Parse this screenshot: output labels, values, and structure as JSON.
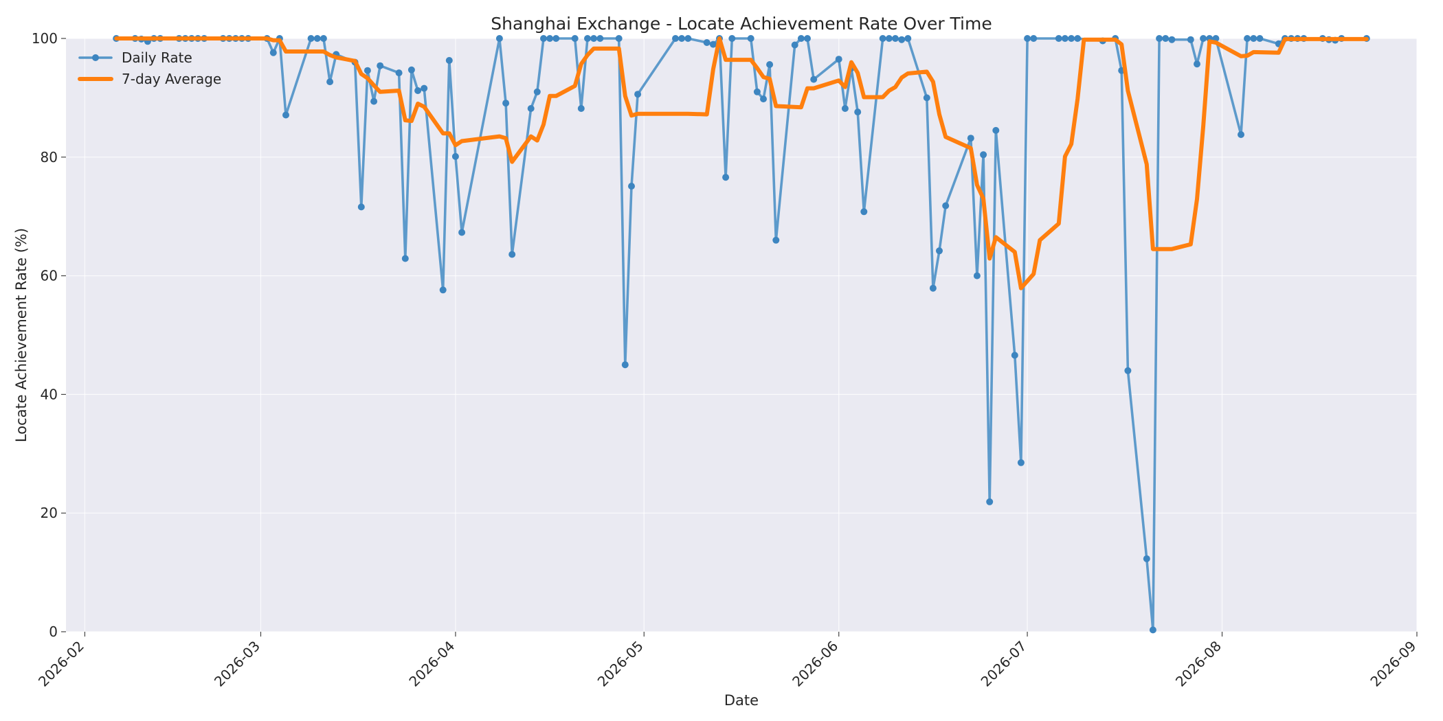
{
  "chart_data": {
    "type": "line",
    "title": "Shanghai Exchange - Locate Achievement Rate Over Time",
    "xlabel": "Date",
    "ylabel": "Locate Achievement Rate (%)",
    "xlim": [
      "2026-01-29",
      "2026-09-01"
    ],
    "ylim": [
      0,
      100
    ],
    "x_ticks": [
      "2026-02",
      "2026-03",
      "2026-04",
      "2026-05",
      "2026-06",
      "2026-07",
      "2026-08",
      "2026-09"
    ],
    "y_ticks": [
      0,
      20,
      40,
      60,
      80,
      100
    ],
    "grid": true,
    "legend": "top-left",
    "series": [
      {
        "name": "Daily Rate",
        "color": "#5596c8",
        "marker": "circle",
        "points": [
          [
            "2026-02-06",
            100.0
          ],
          [
            "2026-02-09",
            100.0
          ],
          [
            "2026-02-10",
            99.9
          ],
          [
            "2026-02-11",
            99.5
          ],
          [
            "2026-02-12",
            100.0
          ],
          [
            "2026-02-13",
            100.0
          ],
          [
            "2026-02-16",
            100.0
          ],
          [
            "2026-02-17",
            100.0
          ],
          [
            "2026-02-18",
            100.0
          ],
          [
            "2026-02-19",
            100.0
          ],
          [
            "2026-02-20",
            100.0
          ],
          [
            "2026-02-23",
            100.0
          ],
          [
            "2026-02-24",
            100.0
          ],
          [
            "2026-02-25",
            100.0
          ],
          [
            "2026-02-26",
            100.0
          ],
          [
            "2026-02-27",
            100.0
          ],
          [
            "2026-03-02",
            100.0
          ],
          [
            "2026-03-03",
            97.6
          ],
          [
            "2026-03-04",
            100.0
          ],
          [
            "2026-03-05",
            87.1
          ],
          [
            "2026-03-09",
            100.0
          ],
          [
            "2026-03-10",
            100.0
          ],
          [
            "2026-03-11",
            100.0
          ],
          [
            "2026-03-12",
            92.7
          ],
          [
            "2026-03-13",
            97.3
          ],
          [
            "2026-03-16",
            96.0
          ],
          [
            "2026-03-17",
            71.6
          ],
          [
            "2026-03-18",
            94.6
          ],
          [
            "2026-03-19",
            89.4
          ],
          [
            "2026-03-20",
            95.4
          ],
          [
            "2026-03-23",
            94.2
          ],
          [
            "2026-03-24",
            62.9
          ],
          [
            "2026-03-25",
            94.7
          ],
          [
            "2026-03-26",
            91.2
          ],
          [
            "2026-03-27",
            91.6
          ],
          [
            "2026-03-30",
            57.6
          ],
          [
            "2026-03-31",
            96.3
          ],
          [
            "2026-04-01",
            80.1
          ],
          [
            "2026-04-02",
            67.3
          ],
          [
            "2026-04-08",
            100.0
          ],
          [
            "2026-04-09",
            89.1
          ],
          [
            "2026-04-10",
            63.6
          ],
          [
            "2026-04-13",
            88.2
          ],
          [
            "2026-04-14",
            91.0
          ],
          [
            "2026-04-15",
            100.0
          ],
          [
            "2026-04-16",
            100.0
          ],
          [
            "2026-04-17",
            100.0
          ],
          [
            "2026-04-20",
            100.0
          ],
          [
            "2026-04-21",
            88.2
          ],
          [
            "2026-04-22",
            100.0
          ],
          [
            "2026-04-23",
            100.0
          ],
          [
            "2026-04-24",
            100.0
          ],
          [
            "2026-04-27",
            100.0
          ],
          [
            "2026-04-28",
            45.0
          ],
          [
            "2026-04-29",
            75.1
          ],
          [
            "2026-04-30",
            90.6
          ],
          [
            "2026-05-06",
            100.0
          ],
          [
            "2026-05-07",
            100.0
          ],
          [
            "2026-05-08",
            100.0
          ],
          [
            "2026-05-11",
            99.3
          ],
          [
            "2026-05-12",
            99.0
          ],
          [
            "2026-05-13",
            100.0
          ],
          [
            "2026-05-14",
            76.6
          ],
          [
            "2026-05-15",
            100.0
          ],
          [
            "2026-05-18",
            100.0
          ],
          [
            "2026-05-19",
            91.0
          ],
          [
            "2026-05-20",
            89.8
          ],
          [
            "2026-05-21",
            95.6
          ],
          [
            "2026-05-22",
            66.0
          ],
          [
            "2026-05-25",
            98.9
          ],
          [
            "2026-05-26",
            100.0
          ],
          [
            "2026-05-27",
            100.0
          ],
          [
            "2026-05-28",
            93.1
          ],
          [
            "2026-06-01",
            96.5
          ],
          [
            "2026-06-02",
            88.2
          ],
          [
            "2026-06-03",
            95.0
          ],
          [
            "2026-06-04",
            87.6
          ],
          [
            "2026-06-05",
            70.8
          ],
          [
            "2026-06-08",
            100.0
          ],
          [
            "2026-06-09",
            100.0
          ],
          [
            "2026-06-10",
            100.0
          ],
          [
            "2026-06-11",
            99.8
          ],
          [
            "2026-06-12",
            100.0
          ],
          [
            "2026-06-15",
            90.0
          ],
          [
            "2026-06-16",
            57.9
          ],
          [
            "2026-06-17",
            64.2
          ],
          [
            "2026-06-18",
            71.8
          ],
          [
            "2026-06-22",
            83.2
          ],
          [
            "2026-06-23",
            60.0
          ],
          [
            "2026-06-24",
            80.4
          ],
          [
            "2026-06-25",
            21.9
          ],
          [
            "2026-06-26",
            84.5
          ],
          [
            "2026-06-29",
            46.6
          ],
          [
            "2026-06-30",
            28.5
          ],
          [
            "2026-07-01",
            100.0
          ],
          [
            "2026-07-02",
            100.0
          ],
          [
            "2026-07-06",
            100.0
          ],
          [
            "2026-07-07",
            100.0
          ],
          [
            "2026-07-08",
            100.0
          ],
          [
            "2026-07-09",
            100.0
          ],
          [
            "2026-07-13",
            99.6
          ],
          [
            "2026-07-15",
            100.0
          ],
          [
            "2026-07-16",
            94.6
          ],
          [
            "2026-07-17",
            44.0
          ],
          [
            "2026-07-20",
            12.3
          ],
          [
            "2026-07-21",
            0.3
          ],
          [
            "2026-07-22",
            100.0
          ],
          [
            "2026-07-23",
            100.0
          ],
          [
            "2026-07-24",
            99.8
          ],
          [
            "2026-07-27",
            99.8
          ],
          [
            "2026-07-28",
            95.7
          ],
          [
            "2026-07-29",
            100.0
          ],
          [
            "2026-07-30",
            100.0
          ],
          [
            "2026-07-31",
            100.0
          ],
          [
            "2026-08-04",
            83.8
          ],
          [
            "2026-08-05",
            100.0
          ],
          [
            "2026-08-06",
            100.0
          ],
          [
            "2026-08-07",
            100.0
          ],
          [
            "2026-08-10",
            99.1
          ],
          [
            "2026-08-11",
            100.0
          ],
          [
            "2026-08-12",
            100.0
          ],
          [
            "2026-08-13",
            100.0
          ],
          [
            "2026-08-14",
            100.0
          ],
          [
            "2026-08-17",
            100.0
          ],
          [
            "2026-08-18",
            99.8
          ],
          [
            "2026-08-19",
            99.7
          ],
          [
            "2026-08-20",
            100.0
          ],
          [
            "2026-08-24",
            100.0
          ]
        ]
      },
      {
        "name": "7-day Average",
        "color": "#ff7f0e",
        "marker": "none",
        "points": [
          [
            "2026-02-06",
            100.0
          ],
          [
            "2026-02-27",
            100.0
          ],
          [
            "2026-03-02",
            100.0
          ],
          [
            "2026-03-03",
            99.7
          ],
          [
            "2026-03-04",
            99.7
          ],
          [
            "2026-03-05",
            97.8
          ],
          [
            "2026-03-09",
            97.8
          ],
          [
            "2026-03-11",
            97.8
          ],
          [
            "2026-03-12",
            97.2
          ],
          [
            "2026-03-13",
            96.8
          ],
          [
            "2026-03-16",
            96.2
          ],
          [
            "2026-03-17",
            94.0
          ],
          [
            "2026-03-18",
            93.3
          ],
          [
            "2026-03-19",
            92.1
          ],
          [
            "2026-03-20",
            91.0
          ],
          [
            "2026-03-23",
            91.2
          ],
          [
            "2026-03-24",
            86.2
          ],
          [
            "2026-03-25",
            86.1
          ],
          [
            "2026-03-26",
            89.0
          ],
          [
            "2026-03-27",
            88.5
          ],
          [
            "2026-03-30",
            84.0
          ],
          [
            "2026-03-31",
            84.0
          ],
          [
            "2026-04-01",
            82.0
          ],
          [
            "2026-04-02",
            82.7
          ],
          [
            "2026-04-08",
            83.5
          ],
          [
            "2026-04-09",
            83.2
          ],
          [
            "2026-04-10",
            79.2
          ],
          [
            "2026-04-13",
            83.5
          ],
          [
            "2026-04-14",
            82.8
          ],
          [
            "2026-04-15",
            85.5
          ],
          [
            "2026-04-16",
            90.3
          ],
          [
            "2026-04-17",
            90.3
          ],
          [
            "2026-04-20",
            92.0
          ],
          [
            "2026-04-21",
            95.7
          ],
          [
            "2026-04-22",
            97.2
          ],
          [
            "2026-04-23",
            98.3
          ],
          [
            "2026-04-27",
            98.3
          ],
          [
            "2026-04-28",
            90.3
          ],
          [
            "2026-04-29",
            87.0
          ],
          [
            "2026-04-30",
            87.3
          ],
          [
            "2026-05-08",
            87.3
          ],
          [
            "2026-05-11",
            87.2
          ],
          [
            "2026-05-12",
            94.8
          ],
          [
            "2026-05-13",
            100.0
          ],
          [
            "2026-05-14",
            96.4
          ],
          [
            "2026-05-18",
            96.4
          ],
          [
            "2026-05-19",
            95.0
          ],
          [
            "2026-05-20",
            93.5
          ],
          [
            "2026-05-21",
            93.2
          ],
          [
            "2026-05-22",
            88.6
          ],
          [
            "2026-05-26",
            88.4
          ],
          [
            "2026-05-27",
            91.6
          ],
          [
            "2026-05-28",
            91.6
          ],
          [
            "2026-06-01",
            92.9
          ],
          [
            "2026-06-02",
            91.8
          ],
          [
            "2026-06-03",
            96.0
          ],
          [
            "2026-06-04",
            94.2
          ],
          [
            "2026-06-05",
            90.1
          ],
          [
            "2026-06-08",
            90.1
          ],
          [
            "2026-06-09",
            91.2
          ],
          [
            "2026-06-10",
            91.8
          ],
          [
            "2026-06-11",
            93.4
          ],
          [
            "2026-06-12",
            94.1
          ],
          [
            "2026-06-15",
            94.4
          ],
          [
            "2026-06-16",
            92.7
          ],
          [
            "2026-06-17",
            87.2
          ],
          [
            "2026-06-18",
            83.4
          ],
          [
            "2026-06-22",
            81.5
          ],
          [
            "2026-06-23",
            75.3
          ],
          [
            "2026-06-24",
            73.0
          ],
          [
            "2026-06-25",
            62.9
          ],
          [
            "2026-06-26",
            66.5
          ],
          [
            "2026-06-29",
            64.0
          ],
          [
            "2026-06-30",
            57.9
          ],
          [
            "2026-07-02",
            60.3
          ],
          [
            "2026-07-03",
            66.0
          ],
          [
            "2026-07-06",
            68.8
          ],
          [
            "2026-07-07",
            80.1
          ],
          [
            "2026-07-08",
            82.2
          ],
          [
            "2026-07-09",
            89.8
          ],
          [
            "2026-07-10",
            99.8
          ],
          [
            "2026-07-15",
            99.8
          ],
          [
            "2026-07-16",
            99.0
          ],
          [
            "2026-07-17",
            91.2
          ],
          [
            "2026-07-20",
            78.8
          ],
          [
            "2026-07-21",
            64.5
          ],
          [
            "2026-07-24",
            64.5
          ],
          [
            "2026-07-27",
            65.3
          ],
          [
            "2026-07-28",
            72.9
          ],
          [
            "2026-07-29",
            85.2
          ],
          [
            "2026-07-30",
            99.5
          ],
          [
            "2026-07-31",
            99.3
          ],
          [
            "2026-08-04",
            97.0
          ],
          [
            "2026-08-05",
            97.1
          ],
          [
            "2026-08-06",
            97.7
          ],
          [
            "2026-08-10",
            97.6
          ],
          [
            "2026-08-11",
            99.9
          ],
          [
            "2026-08-24",
            99.9
          ]
        ]
      }
    ]
  }
}
